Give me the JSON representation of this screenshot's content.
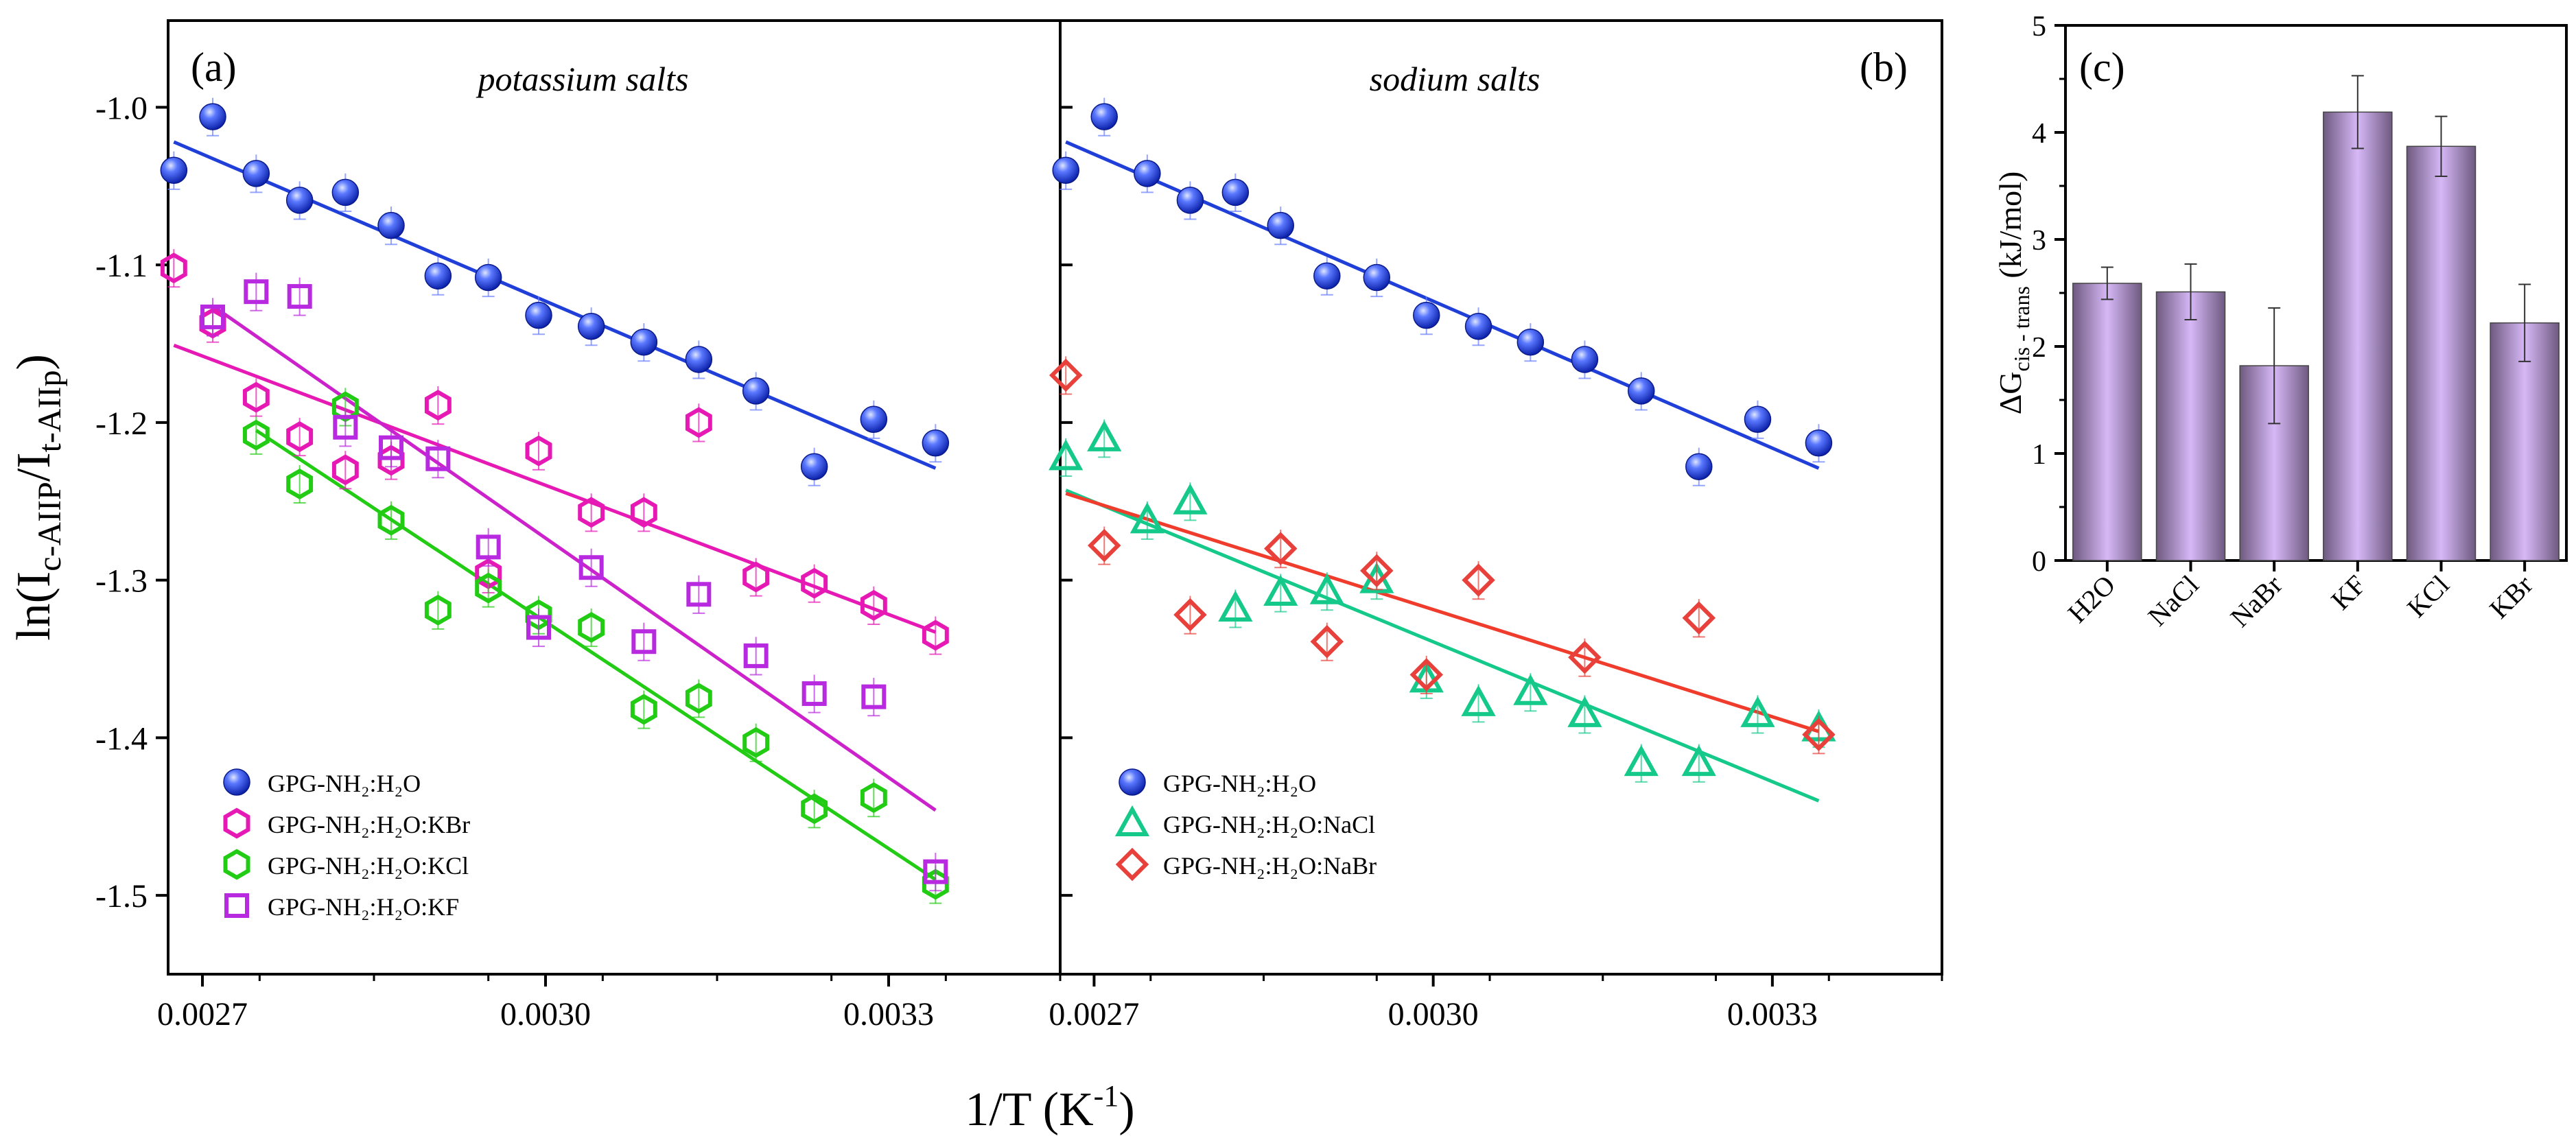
{
  "shared": {
    "xlabel_main": "1/T (K",
    "xlabel_sup": "-1",
    "xlabel_tail": ")",
    "ylabel_main": "ln(I",
    "ylabel_sub1": "c-AIIP",
    "ylabel_mid": "/I",
    "ylabel_sub2": "t-AIIp",
    "ylabel_tail": ")"
  },
  "chart_data": [
    {
      "type": "scatter",
      "panel_label": "(a)",
      "title": "potassium salts",
      "xlim": [
        0.00267,
        0.00345
      ],
      "ylim": [
        -1.55,
        -0.945
      ],
      "xticks": [
        0.0027,
        0.003,
        0.0033
      ],
      "xtick_labels": [
        "0.0027",
        "0.0030",
        "0.0033"
      ],
      "yticks": [
        -1.0,
        -1.1,
        -1.2,
        -1.3,
        -1.4,
        -1.5
      ],
      "ytick_labels": [
        "-1.0",
        "-1.1",
        "-1.2",
        "-1.3",
        "-1.4",
        "-1.5"
      ],
      "legend": "bottom-left",
      "series": [
        {
          "name": "GPG-NH2:H2O",
          "marker": "sphere",
          "color": "#1f3fd8",
          "fit_color": "#1f3fd8",
          "x": [
            0.002675,
            0.002709,
            0.002747,
            0.002785,
            0.002825,
            0.002865,
            0.002906,
            0.00295,
            0.002994,
            0.00304,
            0.003086,
            0.003134,
            0.003184,
            0.003235,
            0.003287,
            0.003341
          ],
          "y": [
            -1.04,
            -1.006,
            -1.042,
            -1.059,
            -1.054,
            -1.075,
            -1.107,
            -1.108,
            -1.132,
            -1.139,
            -1.149,
            -1.16,
            -1.18,
            -1.228,
            -1.198,
            -1.213
          ],
          "fit": [
            [
              0.002675,
              -1.022
            ],
            [
              0.003341,
              -1.229
            ]
          ]
        },
        {
          "name": "GPG-NH2:H2O:KBr",
          "marker": "hexagon",
          "color": "#e619b4",
          "fit_color": "#e619b4",
          "x": [
            0.002675,
            0.002709,
            0.002747,
            0.002785,
            0.002825,
            0.002865,
            0.002906,
            0.00295,
            0.002994,
            0.00304,
            0.003086,
            0.003134,
            0.003184,
            0.003235,
            0.003287,
            0.003341
          ],
          "y": [
            -1.102,
            -1.137,
            -1.184,
            -1.209,
            -1.23,
            -1.224,
            -1.189,
            -1.296,
            -1.218,
            -1.257,
            -1.257,
            -1.2,
            -1.298,
            -1.302,
            -1.316,
            -1.335
          ],
          "fit": [
            [
              0.002675,
              -1.151
            ],
            [
              0.003341,
              -1.333
            ]
          ]
        },
        {
          "name": "GPG-NH2:H2O:KCl",
          "marker": "hexagon",
          "color": "#22cc14",
          "fit_color": "#22cc14",
          "x": [
            0.002747,
            0.002785,
            0.002825,
            0.002865,
            0.002906,
            0.00295,
            0.002994,
            0.00304,
            0.003086,
            0.003134,
            0.003184,
            0.003235,
            0.003287,
            0.003341
          ],
          "y": [
            -1.208,
            -1.239,
            -1.19,
            -1.262,
            -1.319,
            -1.305,
            -1.322,
            -1.33,
            -1.382,
            -1.375,
            -1.403,
            -1.445,
            -1.438,
            -1.493
          ],
          "fit": [
            [
              0.002747,
              -1.205
            ],
            [
              0.003341,
              -1.49
            ]
          ]
        },
        {
          "name": "GPG-NH2:H2O:KF",
          "marker": "square",
          "color": "#b82ae0",
          "fit_color": "#cc22cc",
          "x": [
            0.002709,
            0.002747,
            0.002785,
            0.002825,
            0.002865,
            0.002906,
            0.00295,
            0.002994,
            0.00304,
            0.003086,
            0.003134,
            0.003184,
            0.003235,
            0.003287,
            0.003341
          ],
          "y": [
            -1.133,
            -1.117,
            -1.12,
            -1.203,
            -1.216,
            -1.223,
            -1.279,
            -1.33,
            -1.292,
            -1.339,
            -1.309,
            -1.348,
            -1.372,
            -1.374,
            -1.485
          ],
          "fit": [
            [
              0.002709,
              -1.126
            ],
            [
              0.003341,
              -1.446
            ]
          ]
        }
      ]
    },
    {
      "type": "scatter",
      "panel_label": "(b)",
      "title": "sodium salts",
      "xlim": [
        0.00267,
        0.00345
      ],
      "ylim": [
        -1.55,
        -0.945
      ],
      "xticks": [
        0.0027,
        0.003,
        0.0033
      ],
      "xtick_labels": [
        "0.0027",
        "0.0030",
        "0.0033"
      ],
      "legend": "bottom-left",
      "series": [
        {
          "name": "GPG-NH2:H2O",
          "marker": "sphere",
          "color": "#1f3fd8",
          "fit_color": "#1f3fd8",
          "x": [
            0.002675,
            0.002709,
            0.002747,
            0.002785,
            0.002825,
            0.002865,
            0.002906,
            0.00295,
            0.002994,
            0.00304,
            0.003086,
            0.003134,
            0.003184,
            0.003235,
            0.003287,
            0.003341
          ],
          "y": [
            -1.04,
            -1.006,
            -1.042,
            -1.059,
            -1.054,
            -1.075,
            -1.107,
            -1.108,
            -1.132,
            -1.139,
            -1.149,
            -1.16,
            -1.18,
            -1.228,
            -1.198,
            -1.213
          ],
          "fit": [
            [
              0.002675,
              -1.022
            ],
            [
              0.003341,
              -1.229
            ]
          ]
        },
        {
          "name": "GPG-NH2:H2O:NaCl",
          "marker": "triangle",
          "color": "#14c98a",
          "fit_color": "#14c98a",
          "x": [
            0.002675,
            0.002709,
            0.002747,
            0.002785,
            0.002825,
            0.002865,
            0.002906,
            0.00295,
            0.002994,
            0.00304,
            0.003086,
            0.003134,
            0.003184,
            0.003235,
            0.003287,
            0.003341
          ],
          "y": [
            -1.222,
            -1.21,
            -1.262,
            -1.25,
            -1.318,
            -1.308,
            -1.307,
            -1.3,
            -1.363,
            -1.378,
            -1.371,
            -1.385,
            -1.416,
            -1.416,
            -1.385,
            -1.394
          ],
          "fit": [
            [
              0.002675,
              -1.243
            ],
            [
              0.003341,
              -1.44
            ]
          ]
        },
        {
          "name": "GPG-NH2:H2O:NaBr",
          "marker": "diamond",
          "color": "#e8403a",
          "fit_color": "#f03c2c",
          "x": [
            0.002675,
            0.002709,
            0.002785,
            0.002865,
            0.002906,
            0.00295,
            0.002994,
            0.00304,
            0.003134,
            0.003235,
            0.003341
          ],
          "y": [
            -1.17,
            -1.278,
            -1.322,
            -1.28,
            -1.339,
            -1.294,
            -1.36,
            -1.3,
            -1.349,
            -1.324,
            -1.398
          ],
          "fit": [
            [
              0.002675,
              -1.245
            ],
            [
              0.003341,
              -1.396
            ]
          ]
        }
      ]
    },
    {
      "type": "bar",
      "panel_label": "(c)",
      "categories": [
        "H2O",
        "NaCl",
        "NaBr",
        "KF",
        "KCl",
        "KBr"
      ],
      "values": [
        2.59,
        2.51,
        1.82,
        4.19,
        3.87,
        2.22
      ],
      "errors": [
        0.15,
        0.26,
        0.54,
        0.34,
        0.28,
        0.36
      ],
      "ylim": [
        0,
        5
      ],
      "yticks": [
        0,
        1,
        2,
        3,
        4,
        5
      ],
      "ytick_labels": [
        "0",
        "1",
        "2",
        "3",
        "4",
        "5"
      ],
      "ylabel_main": "ΔG",
      "ylabel_sub": "cis - trans",
      "ylabel_tail": " (kJ/mol)",
      "bar_color": "#c6a8e6"
    }
  ]
}
